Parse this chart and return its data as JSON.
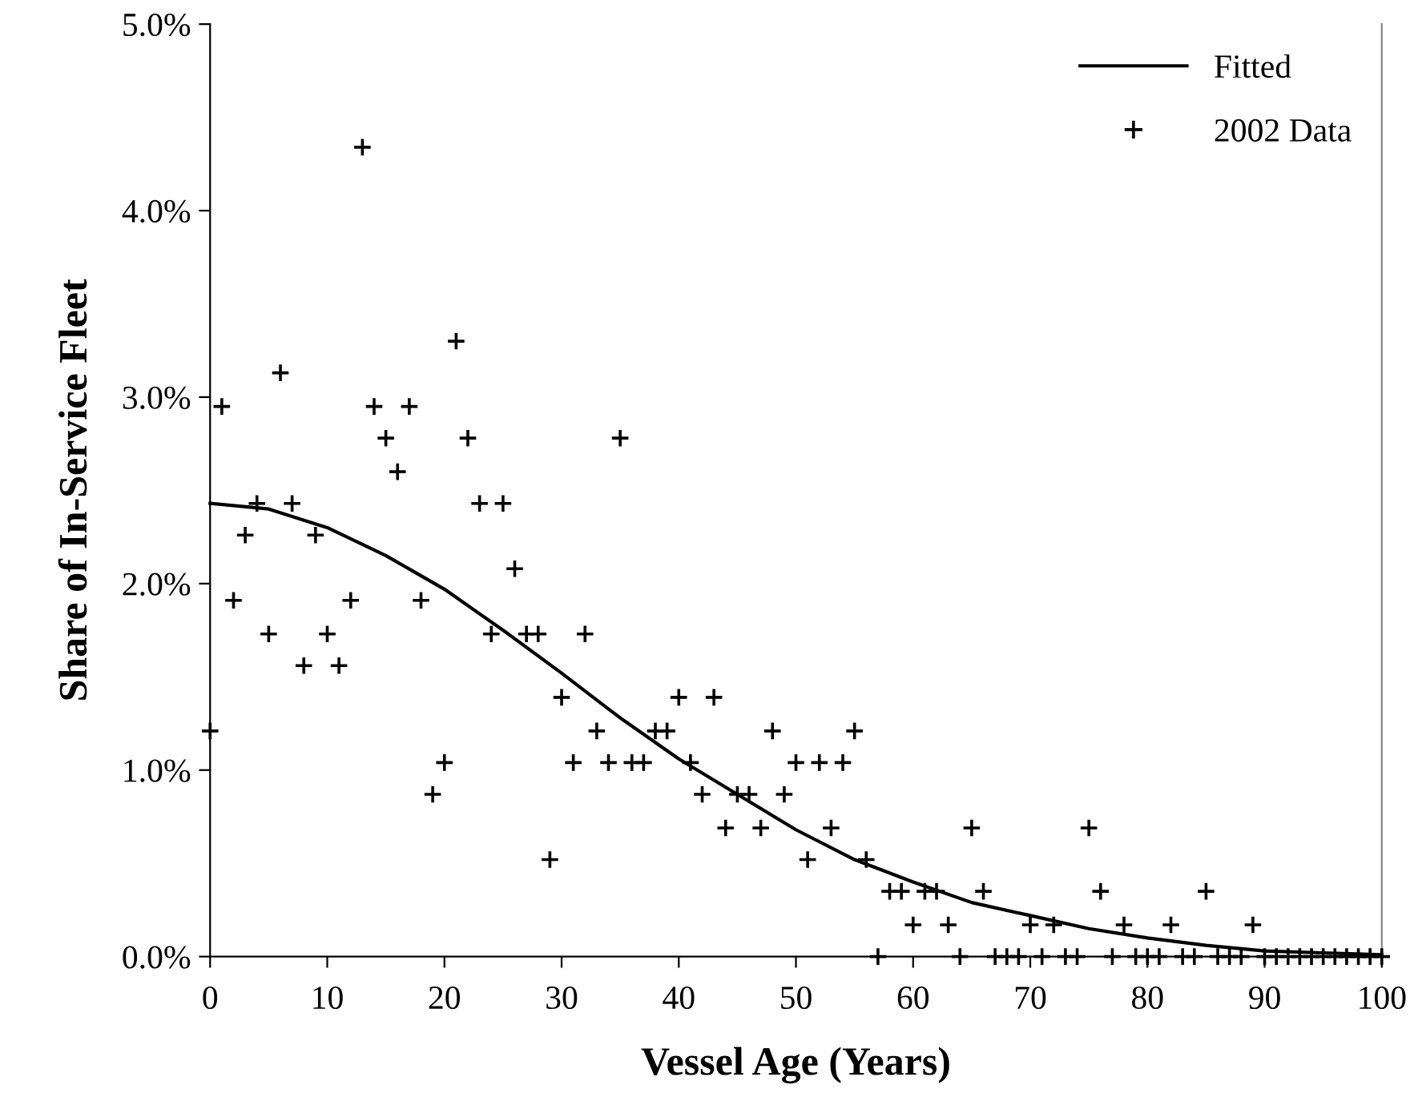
{
  "chart_data": {
    "type": "scatter",
    "xlabel": "Vessel Age (Years)",
    "ylabel": "Share of In-Service Fleet",
    "xlim": [
      0,
      100
    ],
    "xticks": [
      0,
      10,
      20,
      30,
      40,
      50,
      60,
      70,
      80,
      90,
      100
    ],
    "ylim": [
      0,
      5
    ],
    "yticks": [
      {
        "value": 0,
        "label": "0.0%"
      },
      {
        "value": 1,
        "label": "1.0%"
      },
      {
        "value": 2,
        "label": "2.0%"
      },
      {
        "value": 3,
        "label": "3.0%"
      },
      {
        "value": 4,
        "label": "4.0%"
      },
      {
        "value": 5,
        "label": "5.0%"
      }
    ],
    "grid": false,
    "legend": "top right",
    "series": [
      {
        "name": "Fitted",
        "type": "line",
        "color": "#000000",
        "marker": "none",
        "line_style": "solid",
        "x": [
          0,
          5,
          10,
          15,
          20,
          25,
          30,
          35,
          40,
          45,
          50,
          55,
          60,
          65,
          70,
          75,
          80,
          85,
          90,
          95,
          100
        ],
        "values": [
          2.43,
          2.4,
          2.3,
          2.15,
          1.97,
          1.75,
          1.52,
          1.28,
          1.06,
          0.87,
          0.68,
          0.52,
          0.4,
          0.29,
          0.22,
          0.15,
          0.1,
          0.06,
          0.03,
          0.02,
          0.01
        ]
      },
      {
        "name": "2002 Data",
        "color": "#000000",
        "marker": "cross",
        "x": [
          0,
          1,
          2,
          3,
          4,
          5,
          6,
          7,
          8,
          9,
          10,
          11,
          12,
          13,
          14,
          15,
          16,
          17,
          18,
          19,
          20,
          21,
          22,
          23,
          24,
          25,
          26,
          27,
          28,
          29,
          30,
          31,
          32,
          33,
          34,
          35,
          36,
          37,
          38,
          39,
          40,
          41,
          42,
          43,
          44,
          45,
          46,
          47,
          48,
          49,
          50,
          51,
          52,
          53,
          54,
          55,
          56,
          57,
          58,
          59,
          60,
          61,
          62,
          63,
          64,
          65,
          66,
          67,
          68,
          69,
          70,
          71,
          72,
          73,
          74,
          75,
          76,
          77,
          78,
          79,
          80,
          81,
          82,
          83,
          84,
          85,
          86,
          87,
          88,
          89,
          90,
          91,
          92,
          93,
          94,
          95,
          96,
          97,
          98,
          99,
          100
        ],
        "values": [
          1.21,
          2.95,
          1.91,
          2.26,
          2.43,
          1.73,
          3.13,
          2.43,
          1.56,
          2.26,
          1.73,
          1.56,
          1.91,
          4.34,
          2.95,
          2.78,
          2.6,
          2.95,
          1.91,
          0.87,
          1.04,
          3.3,
          2.78,
          2.43,
          1.73,
          2.43,
          2.08,
          1.73,
          1.73,
          0.52,
          1.39,
          1.04,
          1.73,
          1.21,
          1.04,
          2.78,
          1.04,
          1.04,
          1.21,
          1.21,
          1.39,
          1.04,
          0.87,
          1.39,
          0.69,
          0.87,
          0.87,
          0.69,
          1.21,
          0.87,
          1.04,
          0.52,
          1.04,
          0.69,
          1.04,
          1.21,
          0.52,
          0,
          0.35,
          0.35,
          0.17,
          0.35,
          0.35,
          0.17,
          0,
          0.69,
          0.35,
          0,
          0,
          0,
          0.17,
          0,
          0.17,
          0,
          0,
          0.69,
          0.35,
          0,
          0.17,
          0,
          0,
          0,
          0.17,
          0,
          0,
          0.35,
          0,
          0,
          0,
          0.17,
          0,
          0,
          0,
          0,
          0,
          0,
          0,
          0,
          0,
          0,
          0
        ]
      }
    ]
  }
}
